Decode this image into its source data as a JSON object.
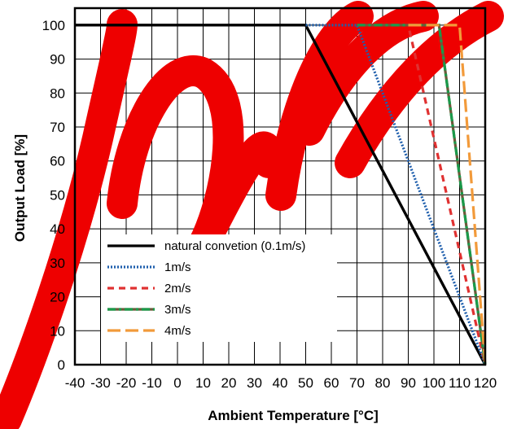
{
  "chart_data": {
    "type": "line",
    "title": "",
    "xlabel": "Ambient Temperature [°C]",
    "ylabel": "Output Load [%]",
    "xlim": [
      -40,
      120
    ],
    "ylim": [
      0,
      105
    ],
    "x_ticks": [
      -40,
      -30,
      -20,
      -10,
      0,
      10,
      20,
      30,
      40,
      50,
      60,
      70,
      80,
      90,
      100,
      110,
      120
    ],
    "y_ticks": [
      0,
      10,
      20,
      30,
      40,
      50,
      60,
      70,
      80,
      90,
      100
    ],
    "grid": true,
    "legend_position": "bottom-left",
    "watermark_color": "#ee0000",
    "series": [
      {
        "name": "natural convetion (0.1m/s)",
        "color": "#000000",
        "dash": "solid",
        "points": [
          [
            -40,
            100
          ],
          [
            50,
            100
          ],
          [
            120,
            0
          ]
        ]
      },
      {
        "name": "1m/s",
        "color": "#1f5fad",
        "dash": "dotted",
        "points": [
          [
            50,
            100
          ],
          [
            70,
            100
          ],
          [
            120,
            0
          ]
        ]
      },
      {
        "name": "2m/s",
        "color": "#e03131",
        "dash": "dashed",
        "points": [
          [
            70,
            100
          ],
          [
            90,
            100
          ],
          [
            120,
            0
          ]
        ]
      },
      {
        "name": "3m/s",
        "color": "#1a9a4a",
        "dash": "dashdot",
        "alt_color": "#6b5a3a",
        "points": [
          [
            70,
            100
          ],
          [
            102,
            100
          ],
          [
            120,
            0
          ]
        ]
      },
      {
        "name": "4m/s",
        "color": "#f29a3a",
        "dash": "longdash",
        "points": [
          [
            90,
            100
          ],
          [
            110,
            100
          ],
          [
            120,
            0
          ]
        ]
      }
    ]
  }
}
